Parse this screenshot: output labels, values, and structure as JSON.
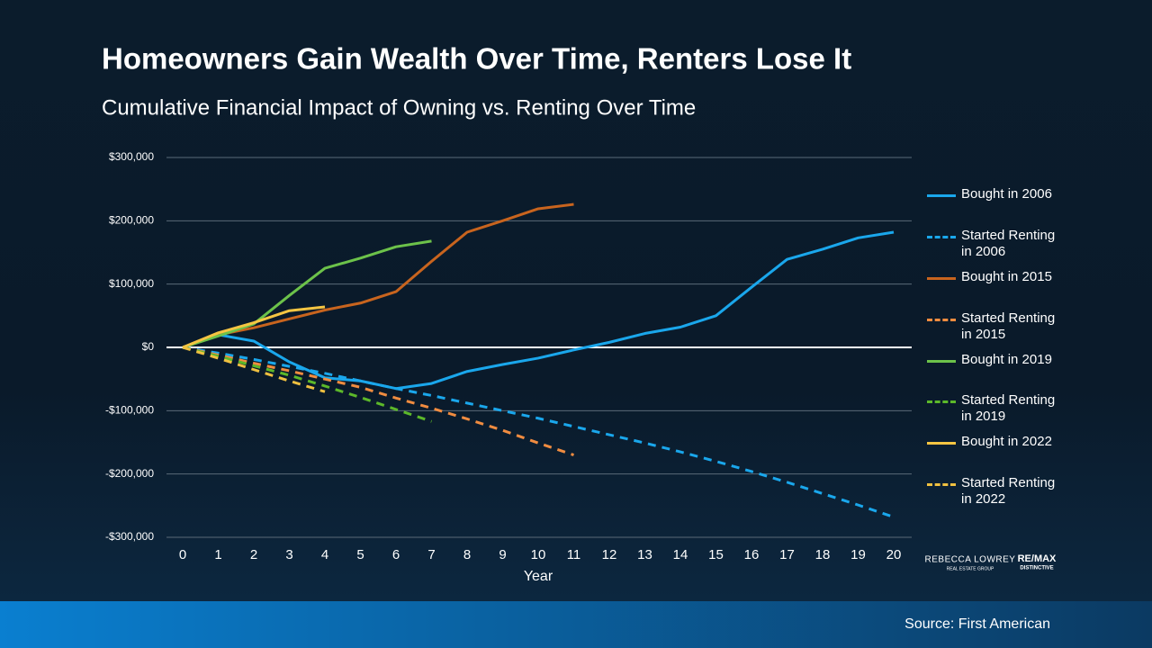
{
  "chart_data": {
    "type": "line",
    "title": "Homeowners Gain Wealth Over Time, Renters Lose It",
    "subtitle": "Cumulative Financial Impact of Owning vs. Renting Over Time",
    "x_label": "Year",
    "source": "Source: First American",
    "logos": [
      "REBECCA LOWREY",
      "REAL ESTATE GROUP",
      "RE/MAX",
      "DISTINCTIVE"
    ],
    "x": [
      0,
      1,
      2,
      3,
      4,
      5,
      6,
      7,
      8,
      9,
      10,
      11,
      12,
      13,
      14,
      15,
      16,
      17,
      18,
      19,
      20
    ],
    "xlim": [
      0,
      20
    ],
    "xticks": [
      0,
      1,
      2,
      3,
      4,
      5,
      6,
      7,
      8,
      9,
      10,
      11,
      12,
      13,
      14,
      15,
      16,
      17,
      18,
      19,
      20
    ],
    "ylim": [
      -300000,
      300000
    ],
    "yticks": [
      {
        "value": -300000,
        "label": "-$300,000"
      },
      {
        "value": -200000,
        "label": "-$200,000"
      },
      {
        "value": -100000,
        "label": "-$100,000"
      },
      {
        "value": 0,
        "label": "$0"
      },
      {
        "value": 100000,
        "label": "$100,000"
      },
      {
        "value": 200000,
        "label": "$200,000"
      },
      {
        "value": 300000,
        "label": "$300,000"
      }
    ],
    "grid": true,
    "legend": "right",
    "series": [
      {
        "name": "Bought in 2006",
        "color": "#1aa7ec",
        "dashed": false,
        "values": [
          0,
          20000,
          10000,
          -23000,
          -48000,
          -53000,
          -65000,
          -57000,
          -38000,
          -27000,
          -17000,
          -4000,
          8000,
          22000,
          32000,
          50000,
          95000,
          139000,
          155000,
          173000,
          182000
        ]
      },
      {
        "name": "Started Renting in 2006",
        "color": "#1aa7ec",
        "dashed": true,
        "values": [
          0,
          -9000,
          -19000,
          -30000,
          -41000,
          -53000,
          -65000,
          -76000,
          -88000,
          -100000,
          -112000,
          -125000,
          -138000,
          -151000,
          -165000,
          -180000,
          -196000,
          -213000,
          -231000,
          -249000,
          -268000
        ]
      },
      {
        "name": "Bought in 2015",
        "color": "#c8641e",
        "dashed": false,
        "values": [
          0,
          20000,
          31000,
          45000,
          59000,
          70000,
          88000,
          136000,
          182000,
          200000,
          219000,
          226000,
          null,
          null,
          null,
          null,
          null,
          null,
          null,
          null,
          null
        ]
      },
      {
        "name": "Started Renting in 2015",
        "color": "#f08c40",
        "dashed": true,
        "values": [
          0,
          -12000,
          -25000,
          -37000,
          -50000,
          -63000,
          -80000,
          -96000,
          -113000,
          -131000,
          -151000,
          -170000,
          null,
          null,
          null,
          null,
          null,
          null,
          null,
          null,
          null
        ]
      },
      {
        "name": "Bought in 2019",
        "color": "#6cc24a",
        "dashed": false,
        "values": [
          0,
          18000,
          37000,
          82000,
          125000,
          141000,
          159000,
          168000,
          null,
          null,
          null,
          null,
          null,
          null,
          null,
          null,
          null,
          null,
          null,
          null,
          null
        ]
      },
      {
        "name": "Started Renting in 2019",
        "color": "#5cb82a",
        "dashed": true,
        "values": [
          0,
          -14000,
          -29000,
          -44000,
          -61000,
          -79000,
          -98000,
          -117000,
          null,
          null,
          null,
          null,
          null,
          null,
          null,
          null,
          null,
          null,
          null,
          null,
          null
        ]
      },
      {
        "name": "Bought in 2022",
        "color": "#f5c542",
        "dashed": false,
        "values": [
          0,
          23000,
          39000,
          58000,
          64000,
          null,
          null,
          null,
          null,
          null,
          null,
          null,
          null,
          null,
          null,
          null,
          null,
          null,
          null,
          null,
          null
        ]
      },
      {
        "name": "Started Renting in 2022",
        "color": "#f0c040",
        "dashed": true,
        "values": [
          0,
          -17000,
          -35000,
          -53000,
          -70000,
          null,
          null,
          null,
          null,
          null,
          null,
          null,
          null,
          null,
          null,
          null,
          null,
          null,
          null,
          null,
          null
        ]
      }
    ]
  }
}
